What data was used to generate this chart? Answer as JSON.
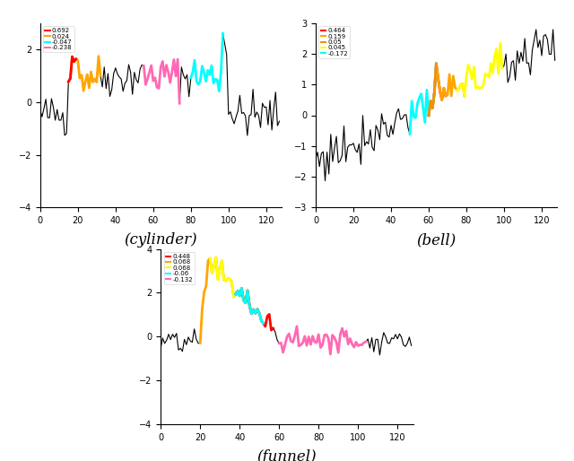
{
  "cylinder": {
    "legend": [
      "0.692",
      "0.024",
      "-0.047",
      "-0.238"
    ],
    "legend_colors": [
      "#FF0000",
      "#FFA500",
      "#00FFFF",
      "#FF69B4"
    ],
    "shapelets": [
      [
        15,
        18,
        "#FFA500"
      ],
      [
        55,
        20,
        "#FF69B4"
      ],
      [
        80,
        18,
        "#00FFFF"
      ],
      [
        15,
        5,
        "#FF0000"
      ]
    ],
    "ylim": [
      -4,
      3
    ],
    "yticks": [
      -4,
      -2,
      0,
      2
    ],
    "xticks": [
      0,
      20,
      40,
      60,
      80,
      100,
      120
    ]
  },
  "bell": {
    "legend": [
      "0.464",
      "0.159",
      "0.05",
      "0.045",
      "-0.172"
    ],
    "legend_colors": [
      "#FF0000",
      "#FFA500",
      "#FF8C00",
      "#FFFF00",
      "#00FFFF"
    ],
    "shapelets": [
      [
        60,
        10,
        "#FF0000"
      ],
      [
        60,
        20,
        "#FFA500"
      ],
      [
        75,
        25,
        "#FFFF00"
      ],
      [
        50,
        15,
        "#00FFFF"
      ],
      [
        60,
        5,
        "#FF8C00"
      ]
    ],
    "ylim": [
      -3,
      3
    ],
    "yticks": [
      -3,
      -2,
      -1,
      0,
      1,
      2,
      3
    ],
    "xticks": [
      0,
      20,
      40,
      60,
      80,
      100,
      120
    ]
  },
  "funnel": {
    "legend": [
      "0.448",
      "0.068",
      "0.068",
      "-0.06",
      "-0.132"
    ],
    "legend_colors": [
      "#FF0000",
      "#FFA500",
      "#FFFF00",
      "#00FFFF",
      "#FF69B4"
    ],
    "shapelets": [
      [
        20,
        30,
        "#FFA500"
      ],
      [
        25,
        25,
        "#FFFF00"
      ],
      [
        38,
        20,
        "#FF0000"
      ],
      [
        38,
        15,
        "#00FFFF"
      ],
      [
        60,
        45,
        "#FF69B4"
      ]
    ],
    "ylim": [
      -4,
      4
    ],
    "yticks": [
      -4,
      -2,
      0,
      2,
      4
    ],
    "xticks": [
      0,
      20,
      40,
      60,
      80,
      100,
      120
    ]
  },
  "title_fontsize": 12,
  "n_points": 128
}
